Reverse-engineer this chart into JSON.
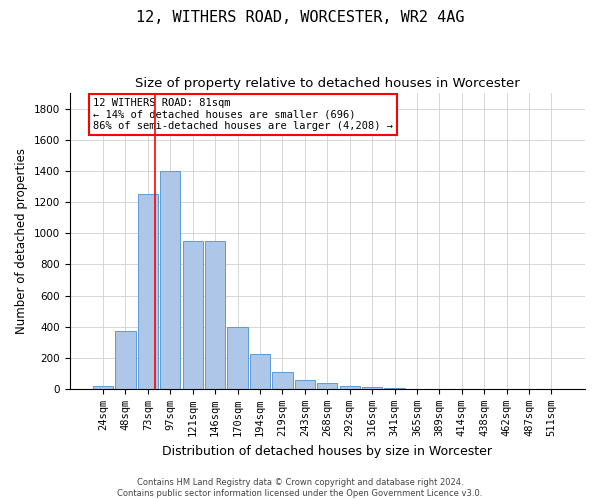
{
  "title_line1": "12, WITHERS ROAD, WORCESTER, WR2 4AG",
  "title_line2": "Size of property relative to detached houses in Worcester",
  "xlabel": "Distribution of detached houses by size in Worcester",
  "ylabel": "Number of detached properties",
  "categories": [
    "24sqm",
    "48sqm",
    "73sqm",
    "97sqm",
    "121sqm",
    "146sqm",
    "170sqm",
    "194sqm",
    "219sqm",
    "243sqm",
    "268sqm",
    "292sqm",
    "316sqm",
    "341sqm",
    "365sqm",
    "389sqm",
    "414sqm",
    "438sqm",
    "462sqm",
    "487sqm",
    "511sqm"
  ],
  "values": [
    20,
    375,
    1250,
    1400,
    950,
    950,
    400,
    225,
    110,
    60,
    35,
    20,
    10,
    5,
    2,
    1,
    1,
    1,
    1,
    0,
    0
  ],
  "bar_color": "#aec6e8",
  "bar_edge_color": "#5b9bd5",
  "grid_color": "#d0d0d0",
  "vline_x": 2.33,
  "vline_color": "red",
  "annotation_text": "12 WITHERS ROAD: 81sqm\n← 14% of detached houses are smaller (696)\n86% of semi-detached houses are larger (4,208) →",
  "annotation_box_color": "white",
  "annotation_box_edge": "red",
  "footer_line1": "Contains HM Land Registry data © Crown copyright and database right 2024.",
  "footer_line2": "Contains public sector information licensed under the Open Government Licence v3.0.",
  "ylim": [
    0,
    1900
  ],
  "yticks": [
    0,
    200,
    400,
    600,
    800,
    1000,
    1200,
    1400,
    1600,
    1800
  ],
  "background_color": "#ffffff",
  "title_fontsize": 11,
  "subtitle_fontsize": 9.5,
  "tick_fontsize": 7.5,
  "ylabel_fontsize": 8.5,
  "xlabel_fontsize": 9,
  "footer_fontsize": 6,
  "annot_fontsize": 7.5
}
